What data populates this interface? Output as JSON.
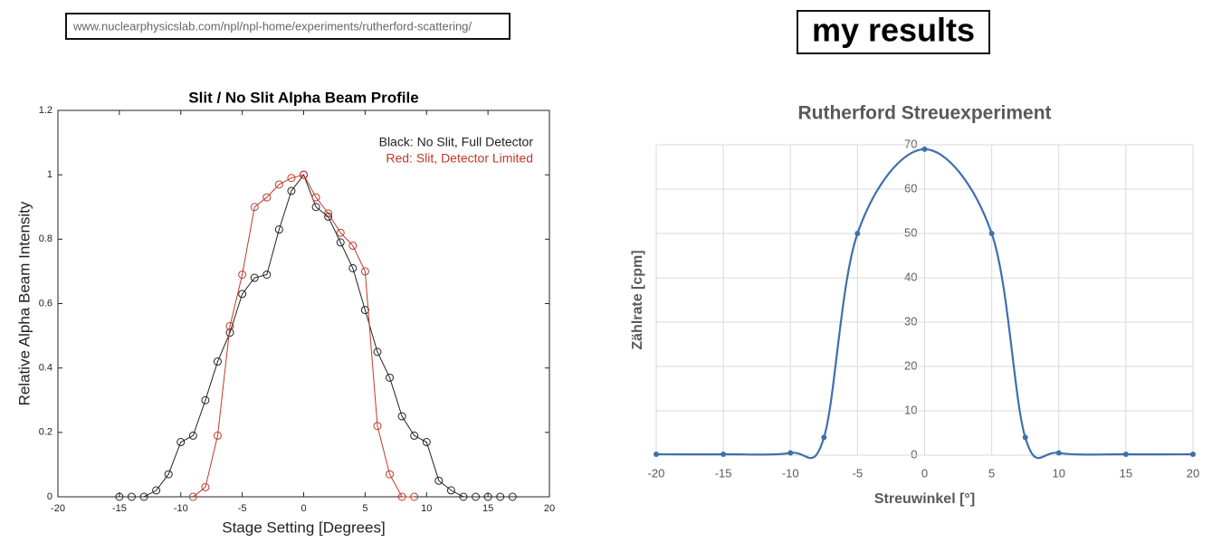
{
  "source_url": "www.nuclearphysicslab.com/npl/npl-home/experiments/rutherford-scattering/",
  "heading": "my results",
  "chart_data": [
    {
      "type": "line",
      "title": "Slit / No Slit Alpha Beam Profile",
      "x_label": "Stage Setting [Degrees]",
      "y_label": "Relative Alpha Beam Intensity",
      "xlim": [
        -20,
        20
      ],
      "xticks": [
        -20,
        -15,
        -10,
        -5,
        0,
        5,
        10,
        15,
        20
      ],
      "ylim": [
        0,
        1.2
      ],
      "yticks": [
        0,
        0.2,
        0.4,
        0.6,
        0.8,
        1,
        1.2
      ],
      "grid": false,
      "box": true,
      "marker": "open-circle",
      "smooth": false,
      "legend": "upper right",
      "series": [
        {
          "name": "Black: No Slit, Full Detector",
          "color": "#222222",
          "x": [
            -15,
            -14,
            -13,
            -12,
            -11,
            -10,
            -9,
            -8,
            -7,
            -6,
            -5,
            -4,
            -3,
            -2,
            -1,
            0,
            1,
            2,
            3,
            4,
            5,
            6,
            7,
            8,
            9,
            10,
            11,
            12,
            13,
            14,
            15,
            16,
            17
          ],
          "values": [
            0,
            0,
            0,
            0.02,
            0.07,
            0.17,
            0.19,
            0.3,
            0.42,
            0.51,
            0.63,
            0.68,
            0.69,
            0.83,
            0.95,
            1,
            0.9,
            0.87,
            0.79,
            0.71,
            0.58,
            0.45,
            0.37,
            0.25,
            0.19,
            0.17,
            0.05,
            0.02,
            0,
            0,
            0,
            0,
            0
          ]
        },
        {
          "name": "Red: Slit, Detector Limited",
          "color": "#c0392b",
          "x": [
            -9,
            -8,
            -7,
            -6,
            -5,
            -4,
            -3,
            -2,
            -1,
            0,
            1,
            2,
            3,
            4,
            5,
            6,
            7,
            8,
            9
          ],
          "values": [
            0,
            0.03,
            0.19,
            0.53,
            0.69,
            0.9,
            0.93,
            0.97,
            0.99,
            1,
            0.93,
            0.88,
            0.82,
            0.78,
            0.7,
            0.22,
            0.07,
            0,
            0
          ]
        }
      ]
    },
    {
      "type": "line",
      "title": "Rutherford Streuexperiment",
      "x_label": "Streuwinkel [°]",
      "y_label": "Zählrate [cpm]",
      "xlim": [
        -20,
        20
      ],
      "xticks": [
        -20,
        -15,
        -10,
        -5,
        0,
        5,
        10,
        15,
        20
      ],
      "ylim": [
        0,
        70
      ],
      "yticks": [
        0,
        10,
        20,
        30,
        40,
        50,
        60,
        70
      ],
      "grid": true,
      "box": false,
      "marker": "dot",
      "smooth": true,
      "series": [
        {
          "color": "#3f6fad",
          "x": [
            -20,
            -15,
            -10,
            -7.5,
            -5,
            0,
            5,
            7.5,
            10,
            15,
            20
          ],
          "values": [
            0.2,
            0.2,
            0.5,
            4,
            50,
            69,
            50,
            4,
            0.5,
            0.2,
            0.2
          ]
        }
      ]
    }
  ]
}
